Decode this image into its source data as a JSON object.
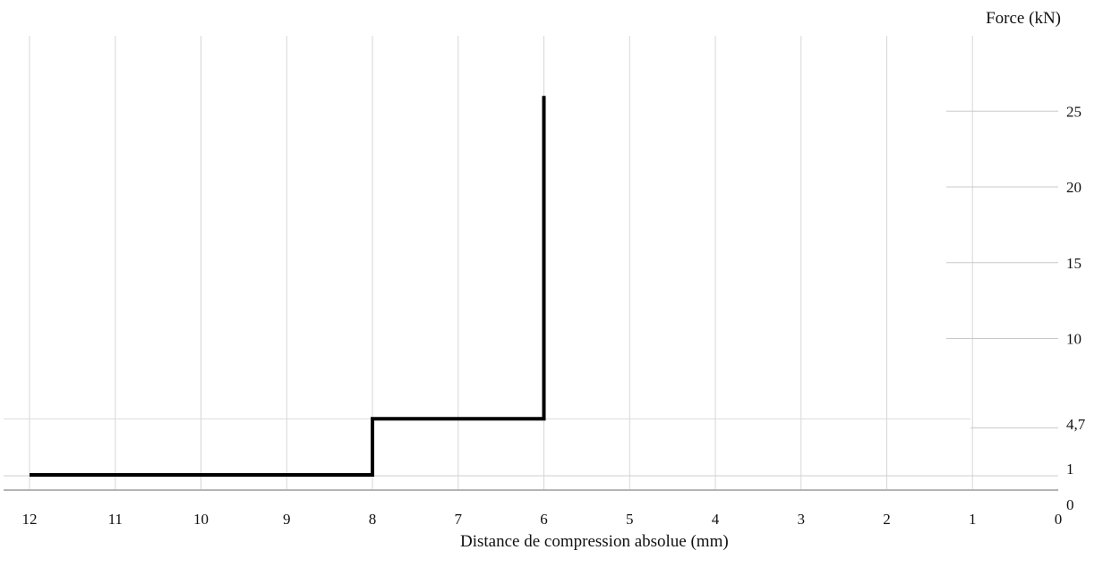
{
  "chart_data": {
    "type": "line",
    "ylabel": "Force (kN)",
    "xlabel": "Distance de compression absolue (mm)",
    "x_axis": {
      "reversed": true,
      "xlim": [
        12,
        0
      ],
      "ticks": [
        12,
        11,
        10,
        9,
        8,
        7,
        6,
        5,
        4,
        3,
        2,
        1,
        0
      ],
      "tick_labels": [
        "12",
        "11",
        "10",
        "9",
        "8",
        "7",
        "6",
        "5",
        "4",
        "3",
        "2",
        "1",
        "0"
      ]
    },
    "y_axis": {
      "position": "right",
      "ylim": [
        0,
        30
      ],
      "ticks": [
        0,
        1,
        4.7,
        10,
        15,
        20,
        25
      ],
      "tick_labels": [
        "0",
        "1",
        "4,7",
        "10",
        "15",
        "20",
        "25"
      ]
    },
    "grid": true,
    "series": [
      {
        "color": "#000000",
        "points": [
          [
            12,
            1
          ],
          [
            8,
            1
          ],
          [
            8,
            4.7
          ],
          [
            6,
            4.7
          ],
          [
            6,
            26
          ]
        ]
      }
    ]
  }
}
